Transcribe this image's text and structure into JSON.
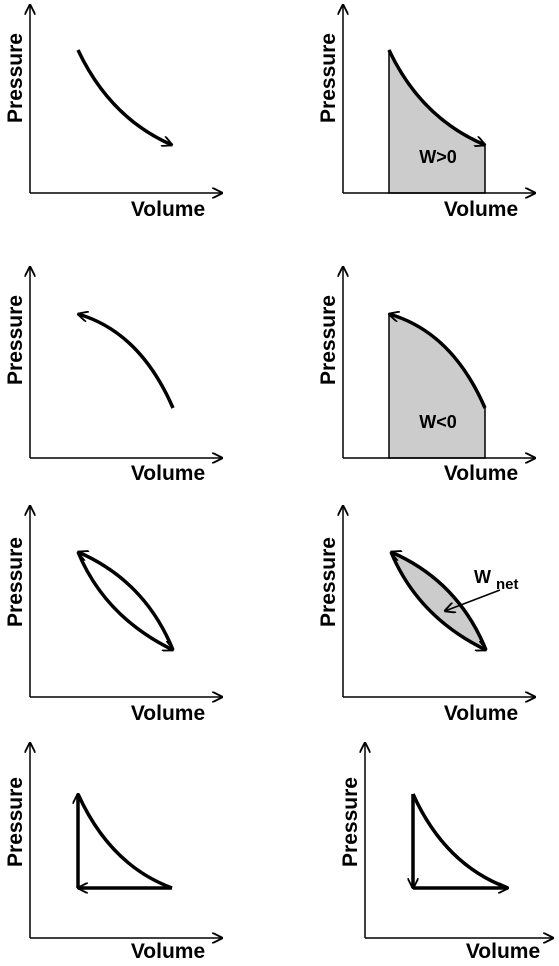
{
  "axis_labels": {
    "x": "Volume",
    "y": "Pressure"
  },
  "panels": [
    {
      "id": "expansion",
      "description_labels": []
    },
    {
      "id": "expansion-work",
      "area_label": "W>0"
    },
    {
      "id": "compression",
      "description_labels": []
    },
    {
      "id": "compression-work",
      "area_label": "W<0"
    },
    {
      "id": "cycle",
      "description_labels": []
    },
    {
      "id": "cycle-net-work",
      "net_label_main": "W",
      "net_label_sub": "net"
    },
    {
      "id": "triangle-cycle-ccw",
      "description_labels": []
    },
    {
      "id": "triangle-cycle-cw",
      "description_labels": []
    }
  ],
  "colors": {
    "stroke": "#000000",
    "shade": "#cccccc",
    "background": "#ffffff"
  }
}
